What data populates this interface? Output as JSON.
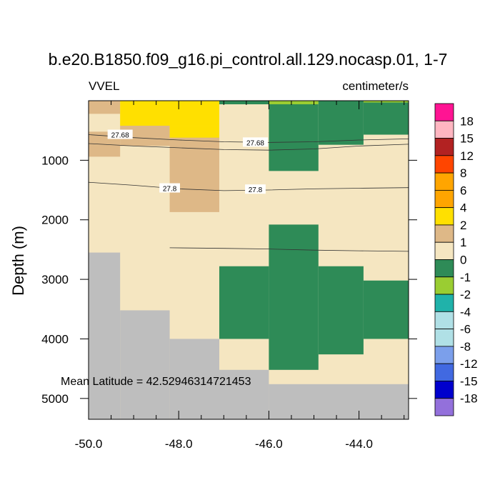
{
  "chart_data": {
    "type": "heatmap",
    "title": "b.e20.B1850.f09_g16.pi_control.all.129.nocasp.01, 1-7",
    "left_label": "VVEL",
    "right_label": "centimeter/s",
    "ylabel": "Depth (m)",
    "xlabel": "",
    "xlim": [
      -50.0,
      -42.9
    ],
    "ylim": [
      5350,
      0
    ],
    "x_ticks": [
      -50.0,
      -48.0,
      -46.0,
      -44.0
    ],
    "x_tick_labels": [
      "-50.0",
      "-48.0",
      "-46.0",
      "-44.0"
    ],
    "y_ticks": [
      1000,
      2000,
      3000,
      4000,
      5000
    ],
    "y_tick_labels": [
      "1000",
      "2000",
      "3000",
      "4000",
      "5000"
    ],
    "annotation": "Mean Latitude = 42.52946314721453",
    "colorbar": {
      "labels": [
        "18",
        "15",
        "12",
        "8",
        "6",
        "4",
        "2",
        "1",
        "0",
        "-1",
        "-2",
        "-4",
        "-6",
        "-8",
        "-12",
        "-15",
        "-18"
      ],
      "colors": [
        "#FF1493",
        "#FFB6C1",
        "#B22222",
        "#FF4500",
        "#FFA500",
        "#FFA500",
        "#FFE000",
        "#DEB887",
        "#F5E6C1",
        "#2E8B57",
        "#9ACD32",
        "#20B2AA",
        "#B0E0E6",
        "#B0E0E6",
        "#7B9FEB",
        "#4169E1",
        "#0000CD",
        "#9370DB"
      ]
    },
    "background_color": "#F5E6C1",
    "cells": [
      {
        "x0": -50.0,
        "x1": -49.3,
        "y0": 0,
        "y1": 220,
        "color": "#DEB887"
      },
      {
        "x0": -50.0,
        "x1": -49.3,
        "y0": 520,
        "y1": 940,
        "color": "#DEB887"
      },
      {
        "x0": -49.3,
        "x1": -48.2,
        "y0": 420,
        "y1": 760,
        "color": "#DEB887"
      },
      {
        "x0": -48.2,
        "x1": -47.1,
        "y0": 600,
        "y1": 1870,
        "color": "#DEB887"
      },
      {
        "x0": -49.3,
        "x1": -47.1,
        "y0": 0,
        "y1": 420,
        "color": "#FFE000"
      },
      {
        "x0": -48.2,
        "x1": -47.1,
        "y0": 420,
        "y1": 620,
        "color": "#FFE000"
      },
      {
        "x0": -47.1,
        "x1": -46.0,
        "y0": 0,
        "y1": 60,
        "color": "#2E8B57"
      },
      {
        "x0": -46.0,
        "x1": -44.9,
        "y0": 0,
        "y1": 60,
        "color": "#9ACD32"
      },
      {
        "x0": -44.9,
        "x1": -42.9,
        "y0": 0,
        "y1": 30,
        "color": "#9ACD32"
      },
      {
        "x0": -46.0,
        "x1": -44.9,
        "y0": 60,
        "y1": 1180,
        "color": "#2E8B57"
      },
      {
        "x0": -44.9,
        "x1": -43.9,
        "y0": 0,
        "y1": 740,
        "color": "#2E8B57"
      },
      {
        "x0": -43.9,
        "x1": -42.9,
        "y0": 30,
        "y1": 570,
        "color": "#2E8B57"
      },
      {
        "x0": -46.0,
        "x1": -44.9,
        "y0": 2080,
        "y1": 4520,
        "color": "#2E8B57"
      },
      {
        "x0": -47.1,
        "x1": -46.0,
        "y0": 2780,
        "y1": 4000,
        "color": "#2E8B57"
      },
      {
        "x0": -44.9,
        "x1": -43.9,
        "y0": 2780,
        "y1": 4260,
        "color": "#2E8B57"
      },
      {
        "x0": -43.9,
        "x1": -42.9,
        "y0": 3020,
        "y1": 4000,
        "color": "#2E8B57"
      },
      {
        "x0": -50.0,
        "x1": -49.3,
        "y0": 2550,
        "y1": 5350,
        "color": "#BEBEBE"
      },
      {
        "x0": -49.3,
        "x1": -48.2,
        "y0": 3520,
        "y1": 5350,
        "color": "#BEBEBE"
      },
      {
        "x0": -48.2,
        "x1": -47.1,
        "y0": 4000,
        "y1": 5350,
        "color": "#BEBEBE"
      },
      {
        "x0": -47.1,
        "x1": -46.0,
        "y0": 4520,
        "y1": 5350,
        "color": "#BEBEBE"
      },
      {
        "x0": -46.0,
        "x1": -42.9,
        "y0": 4760,
        "y1": 5350,
        "color": "#BEBEBE"
      }
    ],
    "contours": [
      {
        "level": "27.68",
        "points": [
          [
            -50.0,
            570
          ],
          [
            -49.0,
            620
          ],
          [
            -48.0,
            660
          ],
          [
            -47.0,
            690
          ],
          [
            -46.0,
            700
          ],
          [
            -45.0,
            690
          ],
          [
            -44.0,
            660
          ],
          [
            -42.9,
            640
          ]
        ],
        "labels": [
          [
            -49.3,
            570
          ],
          [
            -46.3,
            700
          ]
        ]
      },
      {
        "level": "",
        "points": [
          [
            -50.0,
            720
          ],
          [
            -49.0,
            760
          ],
          [
            -48.0,
            790
          ],
          [
            -47.0,
            820
          ],
          [
            -46.0,
            830
          ],
          [
            -45.0,
            810
          ],
          [
            -44.0,
            760
          ],
          [
            -42.9,
            730
          ]
        ],
        "labels": []
      },
      {
        "level": "27.8",
        "points": [
          [
            -50.0,
            1370
          ],
          [
            -49.0,
            1420
          ],
          [
            -48.0,
            1480
          ],
          [
            -47.0,
            1510
          ],
          [
            -46.0,
            1500
          ],
          [
            -45.0,
            1480
          ],
          [
            -44.0,
            1470
          ],
          [
            -42.9,
            1460
          ]
        ],
        "labels": [
          [
            -48.2,
            1470
          ],
          [
            -46.3,
            1490
          ]
        ]
      },
      {
        "level": "",
        "points": [
          [
            -48.2,
            2470
          ],
          [
            -47.0,
            2480
          ],
          [
            -46.0,
            2490
          ],
          [
            -45.0,
            2510
          ],
          [
            -44.0,
            2520
          ],
          [
            -42.9,
            2530
          ]
        ],
        "labels": []
      }
    ]
  }
}
